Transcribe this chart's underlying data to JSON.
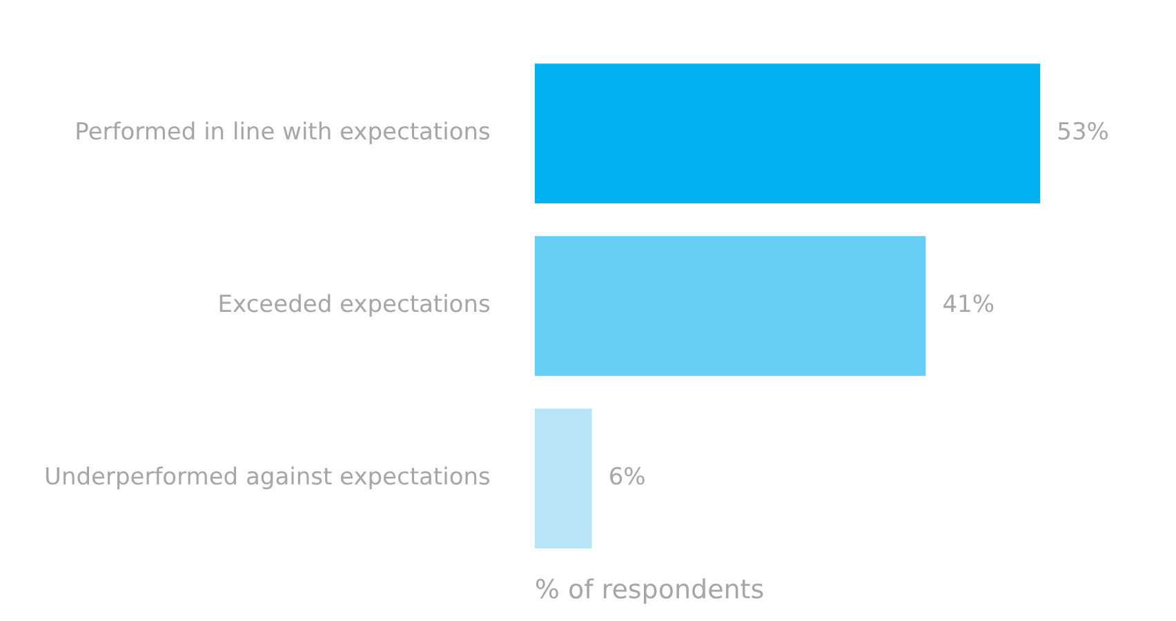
{
  "chart_data": {
    "type": "bar",
    "orientation": "horizontal",
    "xlabel": "% of respondents",
    "categories": [
      "Performed in line with expectations",
      "Exceeded expectations",
      "Underperformed against expectations"
    ],
    "values": [
      53,
      41,
      6
    ],
    "colors": [
      "#00b0f0",
      "#66cdf5",
      "#b8e4f9"
    ],
    "value_labels": [
      "53%",
      "41%",
      "6%"
    ],
    "legend": false,
    "grid": false
  }
}
